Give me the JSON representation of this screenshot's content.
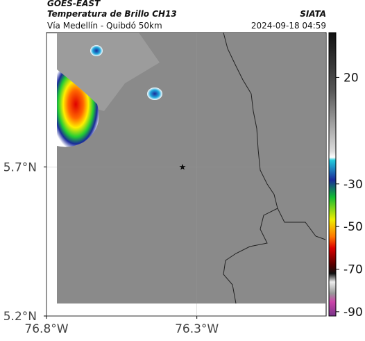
{
  "header": {
    "source": "GOES-EAST",
    "title": "Temperatura de Brillo CH13",
    "org": "SIATA",
    "subtitle": "Vía Medellín - Quibdó 50km",
    "timestamp": "2024-09-18 04:59"
  },
  "map": {
    "xlim": [
      -76.8,
      -75.87
    ],
    "ylim": [
      5.2,
      6.15
    ],
    "xticks": [
      {
        "value": -76.8,
        "label": "76.8°W"
      },
      {
        "value": -76.3,
        "label": "76.3°W"
      }
    ],
    "yticks": [
      {
        "value": 5.7,
        "label": "5.7°N"
      },
      {
        "value": 5.2,
        "label": "5.2°N"
      }
    ]
  },
  "colorbar": {
    "lim": [
      -92,
      41
    ],
    "ticks": [
      20,
      -30,
      -50,
      -70,
      -90
    ]
  }
}
